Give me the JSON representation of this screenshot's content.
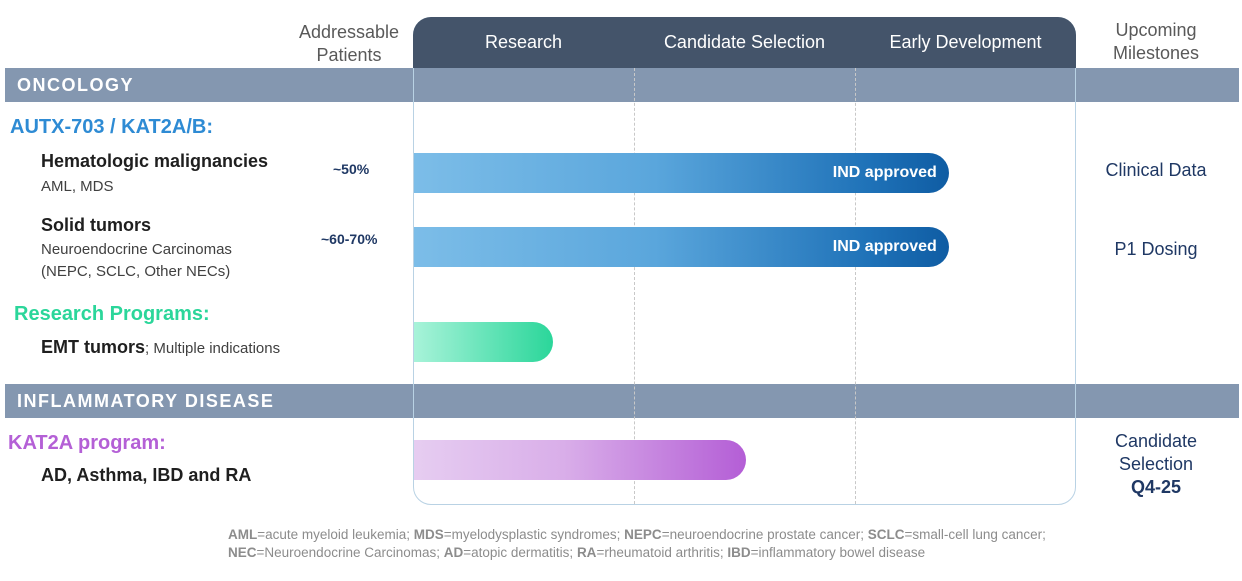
{
  "columns": {
    "addressable_patients": "Addressable Patients",
    "upcoming_milestones": "Upcoming Milestones"
  },
  "phases": [
    "Research",
    "Candidate Selection",
    "Early Development"
  ],
  "sections": {
    "oncology": "ONCOLOGY",
    "inflammatory": "INFLAMMATORY DISEASE"
  },
  "programs": {
    "autx": {
      "label": "AUTX-703 / KAT2A/B:",
      "color": "#2e8bd4",
      "indications": [
        {
          "title": "Hematologic malignancies",
          "subtitle_line1": "AML, MDS",
          "subtitle_line2": "",
          "patients": "~50%",
          "progress_phases": 2.42,
          "bar_label": "IND approved",
          "milestone": "Clinical Data"
        },
        {
          "title": "Solid tumors",
          "subtitle_line1": "Neuroendocrine Carcinomas",
          "subtitle_line2": "(NEPC, SCLC, Other NECs)",
          "patients": "~60-70%",
          "progress_phases": 2.42,
          "bar_label": "IND approved",
          "milestone": "P1 Dosing"
        }
      ]
    },
    "research": {
      "label": "Research Programs:",
      "color": "#2bd69a",
      "indication_title": "EMT tumors",
      "indication_rest": "; Multiple indications",
      "progress_phases": 0.63
    },
    "kat2a": {
      "label": "KAT2A program:",
      "color": "#b460d6",
      "indication_title": "AD, Asthma, IBD and RA",
      "progress_phases": 1.5,
      "milestone_line1": "Candidate",
      "milestone_line2": "Selection",
      "milestone_date": "Q4-25"
    }
  },
  "footnote": [
    {
      "abbr": "AML",
      "def": "=acute myeloid leukemia; "
    },
    {
      "abbr": "MDS",
      "def": "=myelodysplastic syndromes; "
    },
    {
      "abbr": "NEPC",
      "def": "=neuroendocrine prostate cancer; "
    },
    {
      "abbr": "SCLC",
      "def": "=small-cell lung cancer; "
    },
    {
      "abbr": "NEC",
      "def": "=Neuroendocrine Carcinomas; "
    },
    {
      "abbr": "AD",
      "def": "=atopic dermatitis; "
    },
    {
      "abbr": "RA",
      "def": "=rheumatoid arthritis; "
    },
    {
      "abbr": "IBD",
      "def": "=inflammatory bowel disease"
    }
  ]
}
